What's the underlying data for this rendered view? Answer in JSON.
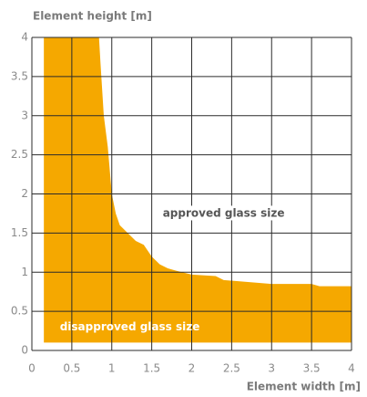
{
  "chart_data": {
    "type": "area",
    "xlabel": "Element width [m]",
    "ylabel": "Element height [m]",
    "annotations": [
      "approved glass size",
      "disapproved glass size"
    ],
    "color": "#f5a800",
    "x": [
      0.15,
      0.84,
      0.86,
      0.9,
      0.95,
      1.0,
      1.05,
      1.1,
      1.2,
      1.3,
      1.4,
      1.5,
      1.6,
      1.7,
      1.8,
      2.0,
      2.3,
      2.4,
      3.0,
      3.5,
      3.6,
      4.0
    ],
    "values": [
      4,
      4,
      3.65,
      3.0,
      2.6,
      2.0,
      1.75,
      1.6,
      1.5,
      1.4,
      1.35,
      1.2,
      1.1,
      1.05,
      1.02,
      0.97,
      0.95,
      0.9,
      0.85,
      0.85,
      0.82,
      0.82
    ],
    "lower": [
      0.1,
      0.1,
      0.1,
      0.1,
      0.1,
      0.1,
      0.1,
      0.1,
      0.1,
      0.1,
      0.1,
      0.1,
      0.1,
      0.1,
      0.1,
      0.1,
      0.1,
      0.1,
      0.1,
      0.1,
      0.1,
      0.1
    ],
    "xlim": [
      0,
      4
    ],
    "ylim": [
      0,
      4
    ],
    "xticks": [
      0,
      0.5,
      1,
      1.5,
      2,
      2.5,
      3,
      3.5,
      4
    ],
    "yticks": [
      0,
      0.5,
      1,
      1.5,
      2,
      2.5,
      3,
      3.5,
      4
    ],
    "grid": true
  }
}
